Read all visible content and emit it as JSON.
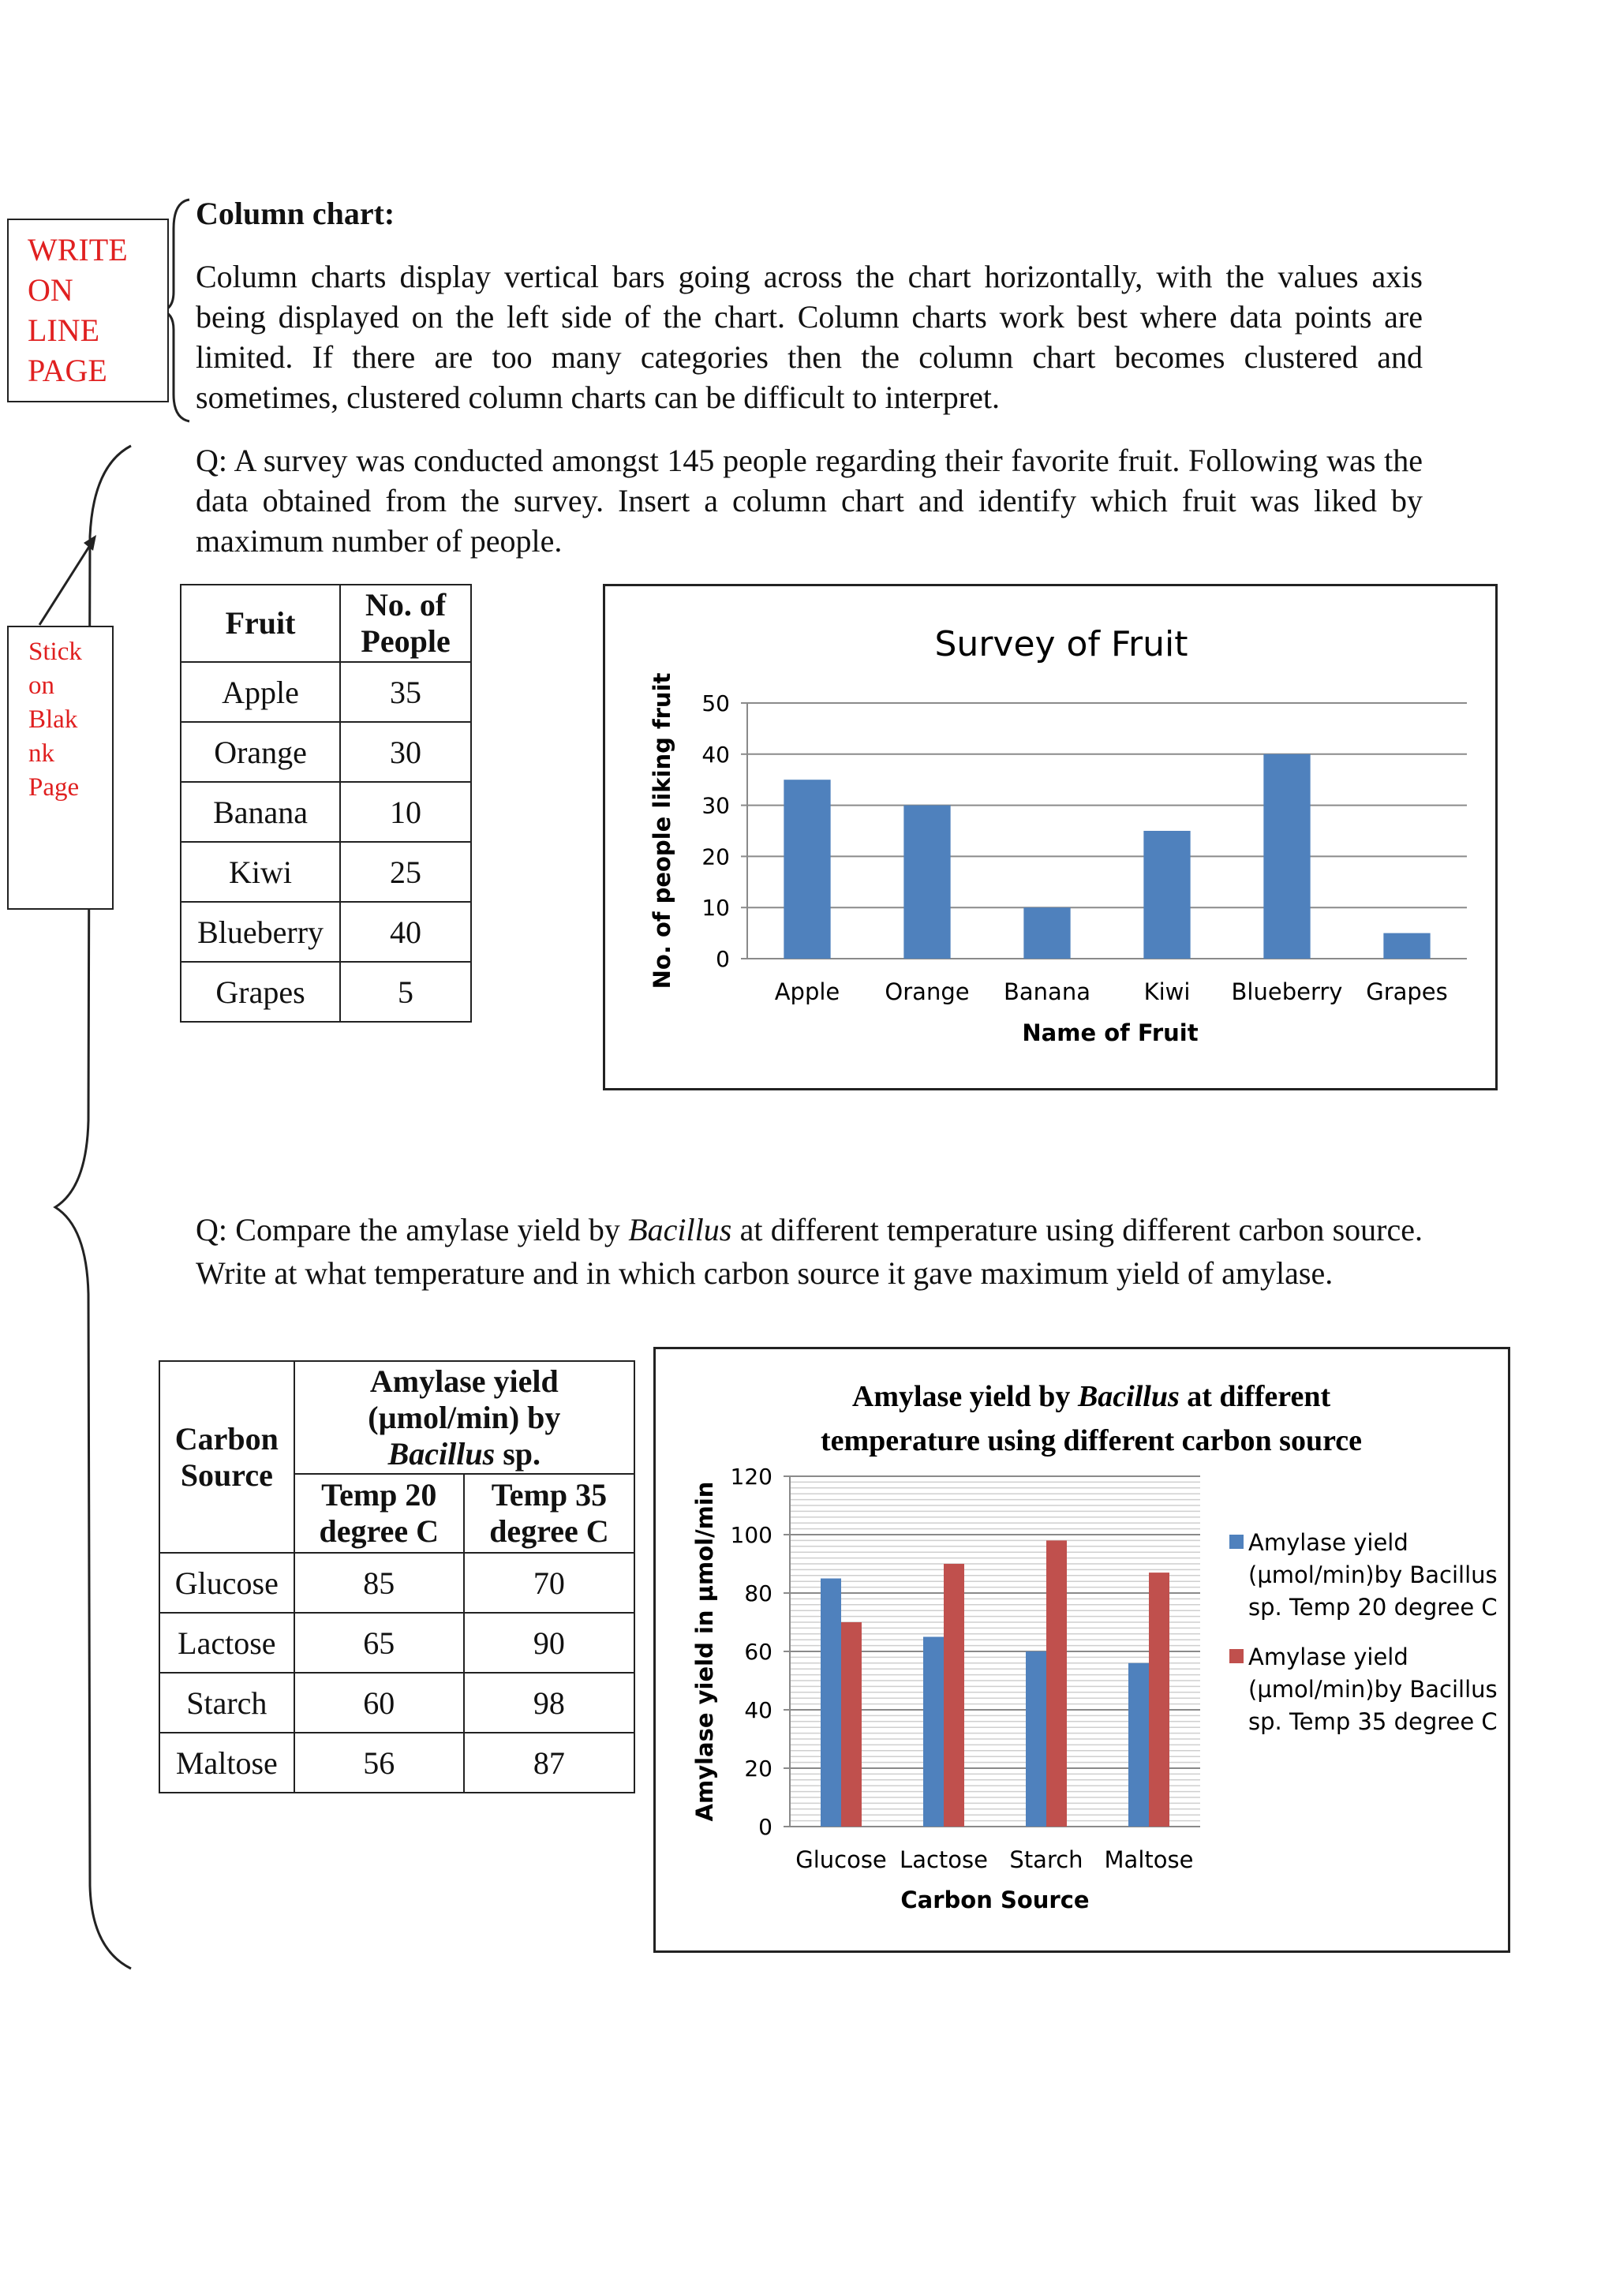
{
  "margin_notes": {
    "write_on_line": [
      "WRITE",
      "ON",
      "LINE",
      "PAGE"
    ],
    "stick_on_blank": [
      "Stick",
      "on",
      "Blak",
      "nk",
      "Page"
    ]
  },
  "section": {
    "heading": "Column chart:",
    "intro": "Column charts display vertical bars going across the chart horizontally, with the values axis being displayed on the left side of the chart. Column charts work best where data points are limited. If there are too many categories then the column chart becomes clustered and sometimes, clustered column charts can be difficult to interpret."
  },
  "q1": {
    "text": "Q: A survey was conducted amongst 145 people regarding their favorite fruit. Following was the data obtained from the survey. Insert a column chart and identify which fruit was liked by maximum number of people.",
    "table": {
      "headers": [
        "Fruit",
        "No. of People"
      ],
      "rows": [
        [
          "Apple",
          "35"
        ],
        [
          "Orange",
          "30"
        ],
        [
          "Banana",
          "10"
        ],
        [
          "Kiwi",
          "25"
        ],
        [
          "Blueberry",
          "40"
        ],
        [
          "Grapes",
          "5"
        ]
      ]
    }
  },
  "q2": {
    "text_before": "Q: Compare the amylase yield by ",
    "text_italic": "Bacillus",
    "text_after": " at different temperature using different carbon source. Write at what temperature and in which carbon source it gave maximum yield of amylase.",
    "table": {
      "col1_header": [
        "Carbon",
        "Source"
      ],
      "group_header_1": "Amylase yield",
      "group_header_2": "(µmol/min) by",
      "group_header_italic": "Bacillus",
      "group_header_3": " sp.",
      "sub_headers": [
        [
          "Temp 20",
          "degree C"
        ],
        [
          "Temp 35",
          "degree C"
        ]
      ],
      "rows": [
        [
          "Glucose",
          "85",
          "70"
        ],
        [
          "Lactose",
          "65",
          "90"
        ],
        [
          "Starch",
          "60",
          "98"
        ],
        [
          "Maltose",
          "56",
          "87"
        ]
      ]
    }
  },
  "chart_data": [
    {
      "type": "bar",
      "title": "Survey of Fruit",
      "xlabel": "Name of Fruit",
      "ylabel": "No. of people liking fruit",
      "categories": [
        "Apple",
        "Orange",
        "Banana",
        "Kiwi",
        "Blueberry",
        "Grapes"
      ],
      "values": [
        35,
        30,
        10,
        25,
        40,
        5
      ],
      "ylim": [
        0,
        50
      ],
      "yticks": [
        0,
        10,
        20,
        30,
        40,
        50
      ],
      "grid": true,
      "legend": "none",
      "colors": [
        "#4f81bd"
      ]
    },
    {
      "type": "bar",
      "title_parts": [
        "Amylase yield by ",
        "Bacillus",
        " at different",
        "temperature using different carbon source"
      ],
      "xlabel": "Carbon Source",
      "ylabel": "Amylase yield in µmol/min",
      "categories": [
        "Glucose",
        "Lactose",
        "Starch",
        "Maltose"
      ],
      "series": [
        {
          "name": "Amylase yield (µmol/min)by Bacillus sp. Temp 20 degree C",
          "legend_lines": [
            "Amylase yield",
            "(µmol/min)by Bacillus",
            "sp. Temp 20 degree C"
          ],
          "values": [
            85,
            65,
            60,
            56
          ]
        },
        {
          "name": "Amylase yield (µmol/min)by Bacillus sp. Temp 35 degree C",
          "legend_lines": [
            "Amylase yield",
            "(µmol/min)by Bacillus",
            "sp. Temp 35 degree C"
          ],
          "values": [
            70,
            90,
            98,
            87
          ]
        }
      ],
      "ylim": [
        0,
        120
      ],
      "yticks": [
        0,
        20,
        40,
        60,
        80,
        100,
        120
      ],
      "minor_step": 2,
      "grid": true,
      "legend": "right",
      "colors": [
        "#4f81bd",
        "#c0504d"
      ]
    }
  ]
}
